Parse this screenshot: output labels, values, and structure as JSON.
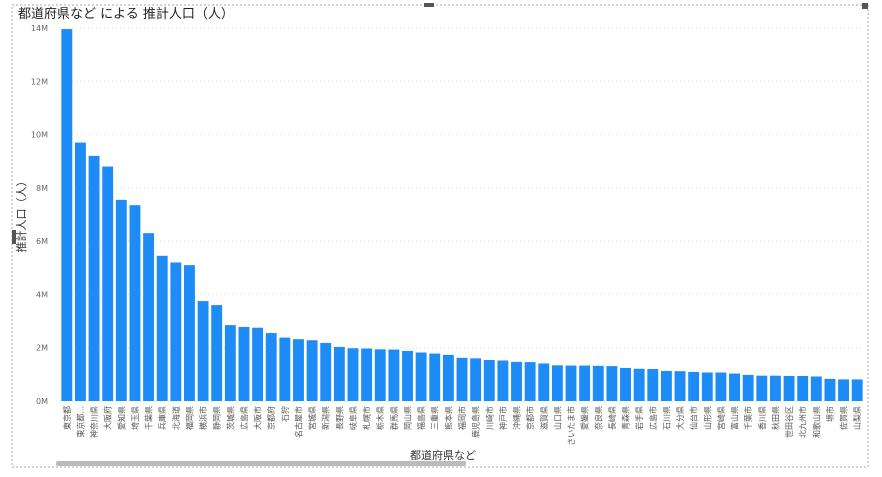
{
  "chart_data": {
    "type": "bar",
    "title": "都道府県など による 推計人口（人）",
    "x_label": "都道府県など",
    "y_label": "推計人口（人）",
    "color": "#1e8cf7",
    "grid": true,
    "categories": [
      "東京都",
      "東京都...",
      "神奈川県",
      "大阪府",
      "愛知県",
      "埼玉県",
      "千葉県",
      "兵庫県",
      "北海道",
      "福岡県",
      "横浜市",
      "静岡県",
      "茨城県",
      "広島県",
      "大阪市",
      "京都府",
      "石狩",
      "名古屋市",
      "宮城県",
      "新潟県",
      "長野県",
      "岐阜県",
      "札幌市",
      "栃木県",
      "群馬県",
      "岡山県",
      "福島県",
      "三重県",
      "熊本県",
      "福岡市",
      "鹿児島県",
      "川崎市",
      "神戸市",
      "沖縄県",
      "京都市",
      "滋賀県",
      "山口県",
      "さいたま市",
      "愛媛県",
      "奈良県",
      "長崎県",
      "青森県",
      "岩手県",
      "広島市",
      "石川県",
      "大分県",
      "仙台市",
      "山形県",
      "宮崎県",
      "富山県",
      "千葉市",
      "香川県",
      "秋田県",
      "世田谷区",
      "北九州市",
      "和歌山県",
      "堺市",
      "佐賀県",
      "山梨県"
    ],
    "values": [
      13960000,
      9700000,
      9200000,
      8800000,
      7550000,
      7350000,
      6300000,
      5450000,
      5200000,
      5100000,
      3750000,
      3600000,
      2850000,
      2780000,
      2750000,
      2550000,
      2380000,
      2320000,
      2280000,
      2180000,
      2030000,
      1980000,
      1970000,
      1940000,
      1930000,
      1880000,
      1820000,
      1780000,
      1730000,
      1620000,
      1600000,
      1540000,
      1520000,
      1470000,
      1460000,
      1410000,
      1340000,
      1330000,
      1330000,
      1320000,
      1310000,
      1240000,
      1210000,
      1200000,
      1130000,
      1120000,
      1090000,
      1070000,
      1070000,
      1030000,
      980000,
      950000,
      950000,
      940000,
      940000,
      920000,
      830000,
      810000,
      810000
    ],
    "ylim": [
      0,
      14000000
    ],
    "yticks": [
      {
        "value": 0,
        "label": "0M"
      },
      {
        "value": 2000000,
        "label": "2M"
      },
      {
        "value": 4000000,
        "label": "4M"
      },
      {
        "value": 6000000,
        "label": "6M"
      },
      {
        "value": 8000000,
        "label": "8M"
      },
      {
        "value": 10000000,
        "label": "10M"
      },
      {
        "value": 12000000,
        "label": "12M"
      },
      {
        "value": 14000000,
        "label": "14M"
      }
    ]
  }
}
